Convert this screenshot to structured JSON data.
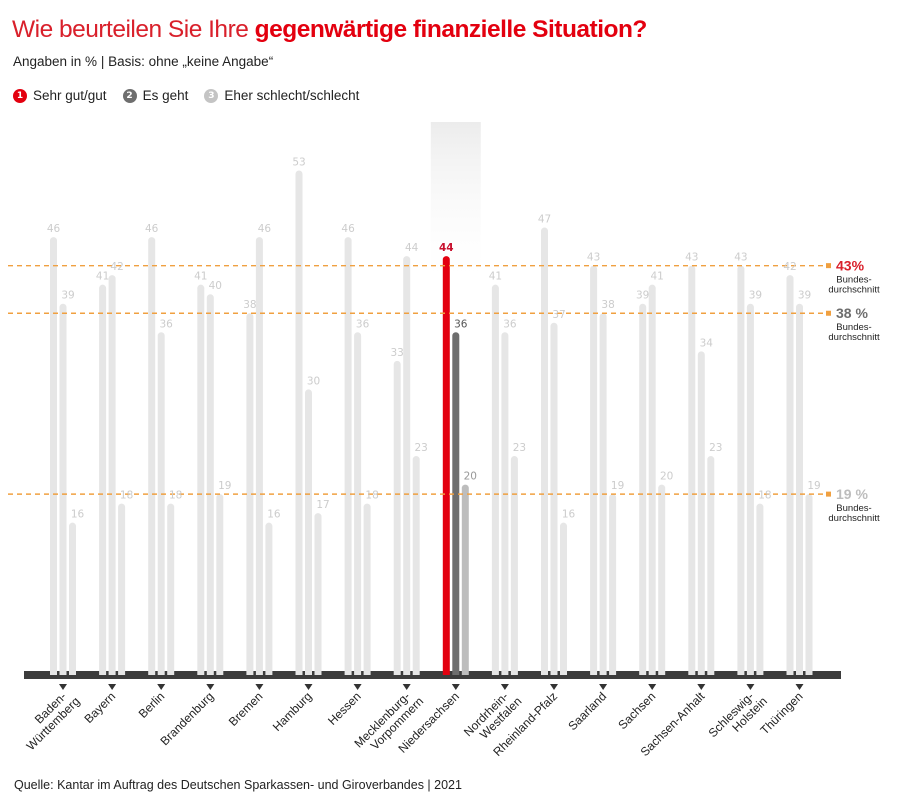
{
  "header": {
    "title_regular": "Wie beurteilen Sie Ihre ",
    "title_bold": "gegenwärtige finanzielle Situation?",
    "subtitle": "Angaben in % | Basis: ohne „keine Angabe“"
  },
  "legend": [
    {
      "number": "1",
      "label": "Sehr gut/gut",
      "color": "#e3000f"
    },
    {
      "number": "2",
      "label": "Es geht",
      "color": "#6e6e6e"
    },
    {
      "number": "3",
      "label": "Eher schlecht/schlecht",
      "color": "#c4c4c4"
    }
  ],
  "source": "Quelle: Kantar im Auftrag des Deutschen Sparkassen- und Giroverbandes | 2021",
  "colors": {
    "highlight_1": "#e3000f",
    "highlight_2": "#6e6e6e",
    "highlight_3": "#bdbdbd",
    "muted_bar": "#e6e6e6",
    "muted_label": "#cccccc",
    "average_line": "#f0a040",
    "baseline": "#3c3c3c",
    "highlight_category": "#d9202b"
  },
  "chart_data": {
    "type": "bar",
    "title": "Wie beurteilen Sie Ihre gegenwärtige finanzielle Situation?",
    "subtitle": "Angaben in % | Basis: ohne „keine Angabe“",
    "xlabel": "",
    "ylabel": "",
    "ylim": [
      0,
      55
    ],
    "grid": false,
    "legend_position": "top-left",
    "highlighted_category": "Niedersachsen",
    "categories": [
      "Baden-\nWürttemberg",
      "Bayern",
      "Berlin",
      "Brandenburg",
      "Bremen",
      "Hamburg",
      "Hessen",
      "Mecklenburg-\nVorpommern",
      "Niedersachsen",
      "Nordrhein-\nWestfalen",
      "Rheinland-Pfalz",
      "Saarland",
      "Sachsen",
      "Sachsen-Anhalt",
      "Schleswig-\nHolstein",
      "Thüringen"
    ],
    "series": [
      {
        "name": "Sehr gut/gut",
        "values": [
          46,
          41,
          46,
          41,
          38,
          53,
          46,
          33,
          44,
          41,
          47,
          43,
          39,
          43,
          43,
          42
        ]
      },
      {
        "name": "Es geht",
        "values": [
          39,
          42,
          36,
          40,
          46,
          30,
          36,
          44,
          36,
          36,
          37,
          38,
          41,
          34,
          39,
          39
        ]
      },
      {
        "name": "Eher schlecht/schlecht",
        "values": [
          16,
          18,
          18,
          19,
          16,
          17,
          18,
          23,
          20,
          23,
          16,
          19,
          20,
          23,
          18,
          19
        ]
      }
    ],
    "reference_lines": [
      {
        "series": "Sehr gut/gut",
        "value": 43,
        "label_value": "43%",
        "label_text": "Bundes-\ndurchschnitt",
        "color": "#d9202b"
      },
      {
        "series": "Es geht",
        "value": 38,
        "label_value": "38 %",
        "label_text": "Bundes-\ndurchschnitt",
        "color": "#6e6e6e"
      },
      {
        "series": "Eher schlecht/schlecht",
        "value": 19,
        "label_value": "19 %",
        "label_text": "Bundes-\ndurchschnitt",
        "color": "#bdbdbd"
      }
    ]
  }
}
